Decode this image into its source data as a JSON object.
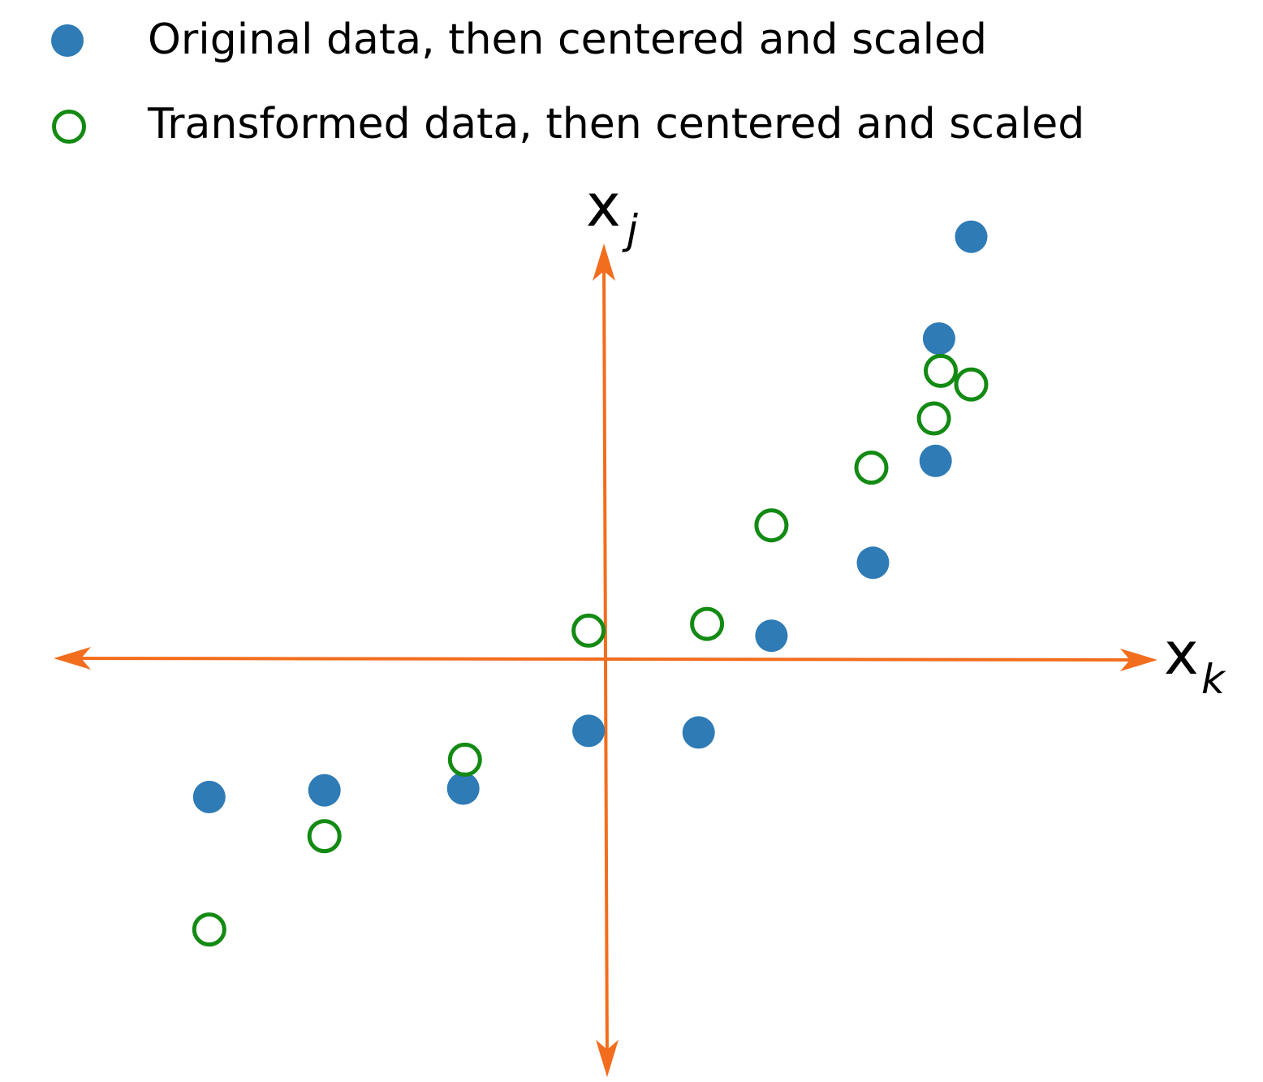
{
  "chart_data": {
    "type": "scatter",
    "xlabel_main": "x",
    "xlabel_sub": "k",
    "ylabel_main": "x",
    "ylabel_sub": "j",
    "legend": [
      {
        "label": "Original data, then centered and scaled",
        "marker": "filled-circle"
      },
      {
        "label": "Transformed data, then centered and scaled",
        "marker": "open-circle"
      }
    ],
    "series": [
      {
        "name": "Original data, then centered and scaled",
        "color": "#2e7bb6",
        "marker": "filled",
        "points": [
          {
            "x": -2.34,
            "y": -0.81
          },
          {
            "x": -1.66,
            "y": -0.77
          },
          {
            "x": -0.84,
            "y": -0.76
          },
          {
            "x": -0.1,
            "y": -0.42
          },
          {
            "x": 0.55,
            "y": -0.43
          },
          {
            "x": 0.98,
            "y": 0.14
          },
          {
            "x": 1.58,
            "y": 0.57
          },
          {
            "x": 1.95,
            "y": 1.17
          },
          {
            "x": 1.97,
            "y": 1.89
          },
          {
            "x": 2.16,
            "y": 2.49
          }
        ]
      },
      {
        "name": "Transformed data, then centered and scaled",
        "color": "#138a13",
        "marker": "open",
        "points": [
          {
            "x": -2.34,
            "y": -1.59
          },
          {
            "x": -1.66,
            "y": -1.04
          },
          {
            "x": -0.83,
            "y": -0.59
          },
          {
            "x": -0.1,
            "y": 0.17
          },
          {
            "x": 0.6,
            "y": 0.21
          },
          {
            "x": 0.98,
            "y": 0.79
          },
          {
            "x": 1.57,
            "y": 1.13
          },
          {
            "x": 1.94,
            "y": 1.42
          },
          {
            "x": 1.98,
            "y": 1.7
          },
          {
            "x": 2.16,
            "y": 1.62
          }
        ]
      }
    ],
    "xlim": [
      -3.25,
      3.26
    ],
    "ylim": [
      -2.45,
      2.45
    ],
    "axis_color": "#f26d1d",
    "grid": false,
    "ticks": false,
    "legend_position": "top-left"
  }
}
